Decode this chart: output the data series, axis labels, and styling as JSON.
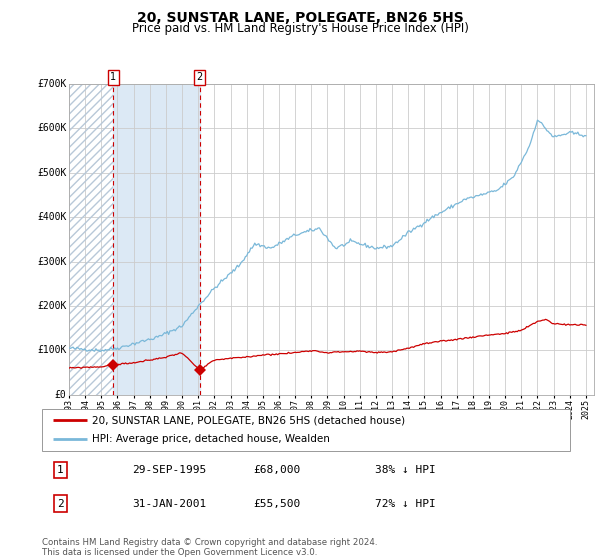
{
  "title": "20, SUNSTAR LANE, POLEGATE, BN26 5HS",
  "subtitle": "Price paid vs. HM Land Registry's House Price Index (HPI)",
  "title_fontsize": 10,
  "subtitle_fontsize": 8.5,
  "bg_color": "#ffffff",
  "plot_bg_color": "#ffffff",
  "grid_color": "#cccccc",
  "hpi_color": "#7ab8d9",
  "price_color": "#cc0000",
  "purchase1_date_num": 1995.75,
  "purchase1_price": 68000,
  "purchase1_label": "1",
  "purchase2_date_num": 2001.08,
  "purchase2_price": 55500,
  "purchase2_label": "2",
  "shade_start": 1995.75,
  "shade_end": 2001.08,
  "ylim": [
    0,
    700000
  ],
  "xlim_start": 1993.0,
  "xlim_end": 2025.5,
  "ylabel_ticks": [
    "£0",
    "£100K",
    "£200K",
    "£300K",
    "£400K",
    "£500K",
    "£600K",
    "£700K"
  ],
  "ylabel_vals": [
    0,
    100000,
    200000,
    300000,
    400000,
    500000,
    600000,
    700000
  ],
  "legend_line1": "20, SUNSTAR LANE, POLEGATE, BN26 5HS (detached house)",
  "legend_line2": "HPI: Average price, detached house, Wealden",
  "table_rows": [
    [
      "1",
      "29-SEP-1995",
      "£68,000",
      "38% ↓ HPI"
    ],
    [
      "2",
      "31-JAN-2001",
      "£55,500",
      "72% ↓ HPI"
    ]
  ],
  "footer": "Contains HM Land Registry data © Crown copyright and database right 2024.\nThis data is licensed under the Open Government Licence v3.0.",
  "xtick_years": [
    1993,
    1994,
    1995,
    1996,
    1997,
    1998,
    1999,
    2000,
    2001,
    2002,
    2003,
    2004,
    2005,
    2006,
    2007,
    2008,
    2009,
    2010,
    2011,
    2012,
    2013,
    2014,
    2015,
    2016,
    2017,
    2018,
    2019,
    2020,
    2021,
    2022,
    2023,
    2024,
    2025
  ]
}
